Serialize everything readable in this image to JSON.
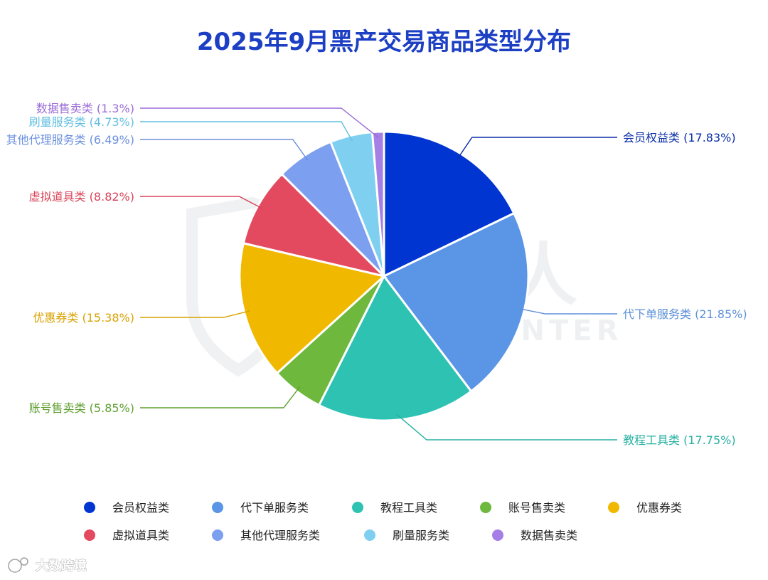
{
  "chart_data": {
    "type": "pie",
    "title": "2025年9月黑产交易商品类型分布",
    "categories": [
      "会员权益类",
      "代下单服务类",
      "教程工具类",
      "账号售卖类",
      "优惠券类",
      "虚拟道具类",
      "其他代理服务类",
      "刷量服务类",
      "数据售卖类"
    ],
    "values": [
      17.83,
      21.85,
      17.75,
      5.85,
      15.38,
      8.82,
      6.49,
      4.73,
      1.3
    ],
    "labels": [
      "会员权益类 (17.83%)",
      "代下单服务类 (21.85%)",
      "教程工具类 (17.75%)",
      "账号售卖类 (5.85%)",
      "优惠券类 (15.38%)",
      "虚拟道具类 (8.82%)",
      "其他代理服务类 (6.49%)",
      "刷量服务类 (4.73%)",
      "数据售卖类 (1.3%)"
    ],
    "colors": [
      "#0035d1",
      "#5b95e6",
      "#2ec2b2",
      "#6db83d",
      "#f1b800",
      "#e34a5f",
      "#7c9ff0",
      "#7ecff0",
      "#a57ee6"
    ],
    "label_colors": [
      "#0a2fa8",
      "#5b8fd8",
      "#26b0a3",
      "#5e9f2f",
      "#d8a200",
      "#d94358",
      "#6b8fde",
      "#62bfe0",
      "#9a6cd8"
    ],
    "legend_placement": "bottom"
  },
  "watermark": {
    "title": "威胁猎人",
    "subtitle": "THREAT HUNTER"
  },
  "source": {
    "text": "大数跨境"
  }
}
